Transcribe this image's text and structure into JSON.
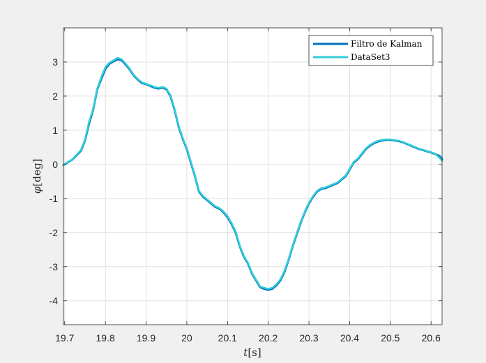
{
  "chart_data": {
    "type": "line",
    "title": "",
    "xlabel_var": "t",
    "xlabel_unit": "[s]",
    "ylabel_var": "φ",
    "ylabel_unit": "[deg]",
    "xlim": [
      19.697,
      20.627
    ],
    "ylim": [
      -4.7,
      4.0
    ],
    "xticks": [
      19.7,
      19.8,
      19.9,
      20.0,
      20.1,
      20.2,
      20.3,
      20.4,
      20.5,
      20.6
    ],
    "xtick_labels": [
      "19.7",
      "19.8",
      "19.9",
      "20",
      "20.1",
      "20.2",
      "20.3",
      "20.4",
      "20.5",
      "20.6"
    ],
    "yticks": [
      -4,
      -3,
      -2,
      -1,
      0,
      1,
      2,
      3
    ],
    "ytick_labels": [
      "-4",
      "-3",
      "-2",
      "-1",
      "0",
      "1",
      "2",
      "3"
    ],
    "grid": true,
    "legend_position": "top-right",
    "series": [
      {
        "name": "Filtro de Kalman",
        "color": "#0072BD",
        "x": [
          19.697,
          19.72,
          19.74,
          19.75,
          19.76,
          19.77,
          19.78,
          19.79,
          19.8,
          19.81,
          19.82,
          19.83,
          19.84,
          19.85,
          19.86,
          19.87,
          19.88,
          19.89,
          19.9,
          19.91,
          19.92,
          19.93,
          19.94,
          19.95,
          19.96,
          19.97,
          19.98,
          19.99,
          20.0,
          20.01,
          20.02,
          20.03,
          20.04,
          20.05,
          20.06,
          20.07,
          20.08,
          20.09,
          20.1,
          20.11,
          20.12,
          20.13,
          20.14,
          20.15,
          20.16,
          20.17,
          20.18,
          20.19,
          20.2,
          20.21,
          20.22,
          20.23,
          20.24,
          20.25,
          20.26,
          20.27,
          20.28,
          20.29,
          20.3,
          20.31,
          20.32,
          20.33,
          20.34,
          20.35,
          20.36,
          20.37,
          20.38,
          20.39,
          20.4,
          20.41,
          20.42,
          20.43,
          20.44,
          20.45,
          20.46,
          20.47,
          20.48,
          20.49,
          20.5,
          20.51,
          20.52,
          20.53,
          20.54,
          20.55,
          20.56,
          20.57,
          20.58,
          20.59,
          20.6,
          20.61,
          20.62,
          20.627
        ],
        "y": [
          -0.02,
          0.15,
          0.4,
          0.7,
          1.2,
          1.6,
          2.2,
          2.5,
          2.8,
          2.95,
          3.02,
          3.08,
          3.05,
          2.92,
          2.78,
          2.6,
          2.48,
          2.38,
          2.35,
          2.3,
          2.25,
          2.22,
          2.25,
          2.2,
          2.0,
          1.6,
          1.1,
          0.75,
          0.45,
          0.05,
          -0.35,
          -0.8,
          -0.95,
          -1.05,
          -1.15,
          -1.25,
          -1.3,
          -1.4,
          -1.55,
          -1.75,
          -2.0,
          -2.4,
          -2.7,
          -2.9,
          -3.2,
          -3.4,
          -3.6,
          -3.65,
          -3.68,
          -3.65,
          -3.55,
          -3.4,
          -3.15,
          -2.8,
          -2.4,
          -2.05,
          -1.7,
          -1.4,
          -1.15,
          -0.95,
          -0.8,
          -0.72,
          -0.7,
          -0.65,
          -0.6,
          -0.55,
          -0.45,
          -0.35,
          -0.15,
          0.05,
          0.15,
          0.3,
          0.45,
          0.55,
          0.62,
          0.67,
          0.7,
          0.72,
          0.72,
          0.7,
          0.68,
          0.65,
          0.6,
          0.55,
          0.5,
          0.45,
          0.42,
          0.38,
          0.35,
          0.3,
          0.25,
          0.15
        ]
      },
      {
        "name": "DataSet3",
        "color": "#32CCD8",
        "x": [
          19.697,
          19.72,
          19.74,
          19.75,
          19.76,
          19.77,
          19.78,
          19.79,
          19.8,
          19.81,
          19.82,
          19.83,
          19.84,
          19.85,
          19.86,
          19.87,
          19.88,
          19.89,
          19.9,
          19.91,
          19.92,
          19.93,
          19.94,
          19.95,
          19.96,
          19.97,
          19.98,
          19.99,
          20.0,
          20.01,
          20.02,
          20.03,
          20.04,
          20.05,
          20.06,
          20.07,
          20.08,
          20.09,
          20.1,
          20.11,
          20.12,
          20.13,
          20.14,
          20.15,
          20.16,
          20.17,
          20.18,
          20.19,
          20.2,
          20.21,
          20.22,
          20.23,
          20.24,
          20.25,
          20.26,
          20.27,
          20.28,
          20.29,
          20.3,
          20.31,
          20.32,
          20.33,
          20.34,
          20.35,
          20.36,
          20.37,
          20.38,
          20.39,
          20.4,
          20.41,
          20.42,
          20.43,
          20.44,
          20.45,
          20.46,
          20.47,
          20.48,
          20.49,
          20.5,
          20.51,
          20.52,
          20.53,
          20.54,
          20.55,
          20.56,
          20.57,
          20.58,
          20.59,
          20.6,
          20.61,
          20.62,
          20.627
        ],
        "y": [
          -0.02,
          0.16,
          0.42,
          0.72,
          1.25,
          1.62,
          2.22,
          2.55,
          2.85,
          2.98,
          3.05,
          3.12,
          3.08,
          2.95,
          2.8,
          2.62,
          2.5,
          2.4,
          2.36,
          2.32,
          2.27,
          2.24,
          2.27,
          2.22,
          2.02,
          1.62,
          1.12,
          0.77,
          0.47,
          0.07,
          -0.33,
          -0.78,
          -0.93,
          -1.03,
          -1.13,
          -1.23,
          -1.28,
          -1.38,
          -1.52,
          -1.72,
          -1.97,
          -2.38,
          -2.68,
          -2.88,
          -3.18,
          -3.38,
          -3.58,
          -3.62,
          -3.65,
          -3.62,
          -3.52,
          -3.37,
          -3.12,
          -2.78,
          -2.38,
          -2.03,
          -1.68,
          -1.38,
          -1.13,
          -0.93,
          -0.78,
          -0.7,
          -0.68,
          -0.63,
          -0.58,
          -0.53,
          -0.43,
          -0.33,
          -0.13,
          0.07,
          0.17,
          0.32,
          0.47,
          0.57,
          0.64,
          0.69,
          0.72,
          0.73,
          0.73,
          0.71,
          0.69,
          0.66,
          0.61,
          0.56,
          0.51,
          0.46,
          0.43,
          0.39,
          0.36,
          0.31,
          0.2,
          0.1
        ]
      }
    ]
  }
}
